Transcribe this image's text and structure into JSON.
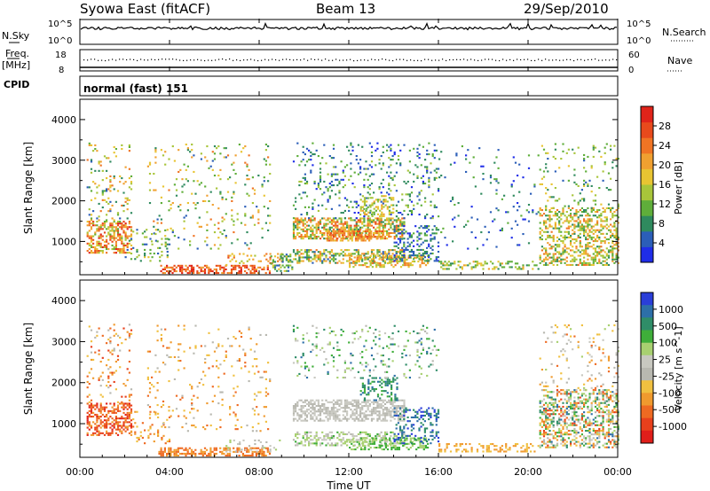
{
  "header": {
    "title": "Syowa East (fitACF)",
    "beam": "Beam 13",
    "date": "29/Sep/2010"
  },
  "panels": {
    "noise": {
      "left_label": "N.Sky",
      "left_ticks": [
        "10^5",
        "10^0"
      ],
      "right_label": "N.Search",
      "right_ticks": [
        "10^5",
        "10^0"
      ]
    },
    "freq": {
      "left_label_1": "Freq.",
      "left_label_2": "[MHz]",
      "left_ticks": [
        "18",
        "8"
      ],
      "right_label": "Nave",
      "right_ticks": [
        "60",
        "0"
      ]
    },
    "cpid": {
      "label": "CPID",
      "value": "normal (fast) 151"
    }
  },
  "time_axis": {
    "label": "Time UT",
    "ticks": [
      "00:00",
      "04:00",
      "08:00",
      "12:00",
      "16:00",
      "20:00",
      "00:00"
    ]
  },
  "chart_data": [
    {
      "type": "heatmap",
      "name": "power",
      "ylabel": "Slant Range [km]",
      "yticks": [
        1000,
        2000,
        3000,
        4000
      ],
      "ylim": [
        180,
        4500
      ],
      "xlim_hours": [
        0,
        24
      ],
      "colorbar": {
        "label": "Power [dB]",
        "ticks": [
          "4",
          "8",
          "12",
          "16",
          "20",
          "24",
          "28"
        ],
        "colors": [
          "#1f2de8",
          "#2b5eb8",
          "#2f8a5e",
          "#5fae3a",
          "#a8c53a",
          "#e8c432",
          "#f0a030",
          "#f07424",
          "#e84a1c",
          "#e0241a"
        ]
      },
      "regions": [
        {
          "t0": 0.3,
          "t1": 2.3,
          "r0": 700,
          "r1": 1500,
          "density": 0.5,
          "levels": [
            3,
            9
          ]
        },
        {
          "t0": 0.3,
          "t1": 2.3,
          "r0": 1500,
          "r1": 3400,
          "density": 0.1,
          "levels": [
            1,
            7
          ]
        },
        {
          "t0": 2.0,
          "t1": 4.0,
          "r0": 500,
          "r1": 1300,
          "density": 0.12,
          "levels": [
            1,
            5
          ]
        },
        {
          "t0": 3.5,
          "t1": 8.5,
          "r0": 200,
          "r1": 420,
          "density": 0.55,
          "levels": [
            6,
            9
          ]
        },
        {
          "t0": 3.0,
          "t1": 8.5,
          "r0": 800,
          "r1": 3400,
          "density": 0.06,
          "levels": [
            1,
            7
          ]
        },
        {
          "t0": 6.5,
          "t1": 9.0,
          "r0": 400,
          "r1": 700,
          "density": 0.18,
          "levels": [
            4,
            8
          ]
        },
        {
          "t0": 8.5,
          "t1": 9.5,
          "r0": 250,
          "r1": 700,
          "density": 0.4,
          "levels": [
            1,
            5
          ]
        },
        {
          "t0": 9.5,
          "t1": 14.5,
          "r0": 1050,
          "r1": 1550,
          "density": 0.6,
          "levels": [
            2,
            8
          ]
        },
        {
          "t0": 11.0,
          "t1": 13.5,
          "r0": 1000,
          "r1": 1250,
          "density": 0.6,
          "levels": [
            5,
            8
          ]
        },
        {
          "t0": 9.5,
          "t1": 14.5,
          "r0": 450,
          "r1": 800,
          "density": 0.5,
          "levels": [
            1,
            7
          ]
        },
        {
          "t0": 12.0,
          "t1": 15.5,
          "r0": 350,
          "r1": 650,
          "density": 0.45,
          "levels": [
            4,
            7
          ]
        },
        {
          "t0": 9.5,
          "t1": 16.0,
          "r0": 1550,
          "r1": 3400,
          "density": 0.12,
          "levels": [
            0,
            4
          ]
        },
        {
          "t0": 12.5,
          "t1": 14.0,
          "r0": 1600,
          "r1": 2100,
          "density": 0.35,
          "levels": [
            3,
            6
          ]
        },
        {
          "t0": 14.0,
          "t1": 16.0,
          "r0": 500,
          "r1": 1400,
          "density": 0.3,
          "levels": [
            0,
            3
          ]
        },
        {
          "t0": 16.0,
          "t1": 20.5,
          "r0": 300,
          "r1": 500,
          "density": 0.35,
          "levels": [
            2,
            6
          ]
        },
        {
          "t0": 16.0,
          "t1": 20.5,
          "r0": 800,
          "r1": 3400,
          "density": 0.04,
          "levels": [
            0,
            3
          ]
        },
        {
          "t0": 20.5,
          "t1": 24.0,
          "r0": 400,
          "r1": 1800,
          "density": 0.45,
          "levels": [
            2,
            7
          ]
        },
        {
          "t0": 20.5,
          "t1": 24.0,
          "r0": 1800,
          "r1": 3400,
          "density": 0.08,
          "levels": [
            1,
            5
          ]
        }
      ]
    },
    {
      "type": "heatmap",
      "name": "velocity",
      "ylabel": "Slant Range [km]",
      "yticks": [
        1000,
        2000,
        3000,
        4000
      ],
      "ylim": [
        180,
        4500
      ],
      "xlim_hours": [
        0,
        24
      ],
      "colorbar": {
        "label": "Velocity [m s^-1]",
        "ticks": [
          "1000",
          "500",
          "100",
          "25",
          "-25",
          "-100",
          "-500",
          "-1000"
        ],
        "colors": [
          "#2a3ed8",
          "#2d6fa8",
          "#2f8d68",
          "#3fae3a",
          "#a8d070",
          "#c8c8c0",
          "#b8b8b0",
          "#f0c040",
          "#f09a2e",
          "#ee6a22",
          "#e8401c",
          "#e01e1a"
        ]
      },
      "regions": [
        {
          "t0": 0.3,
          "t1": 2.3,
          "r0": 700,
          "r1": 1500,
          "density": 0.5,
          "levels": [
            8,
            11
          ]
        },
        {
          "t0": 0.3,
          "t1": 2.3,
          "r0": 1500,
          "r1": 3400,
          "density": 0.1,
          "levels": [
            6,
            10
          ]
        },
        {
          "t0": 2.0,
          "t1": 4.0,
          "r0": 500,
          "r1": 1300,
          "density": 0.1,
          "levels": [
            7,
            9
          ]
        },
        {
          "t0": 3.5,
          "t1": 8.5,
          "r0": 200,
          "r1": 420,
          "density": 0.55,
          "levels": [
            8,
            9
          ]
        },
        {
          "t0": 3.0,
          "t1": 8.5,
          "r0": 800,
          "r1": 3400,
          "density": 0.06,
          "levels": [
            6,
            9
          ]
        },
        {
          "t0": 6.5,
          "t1": 9.0,
          "r0": 300,
          "r1": 600,
          "density": 0.2,
          "levels": [
            4,
            6
          ]
        },
        {
          "t0": 9.5,
          "t1": 14.5,
          "r0": 1050,
          "r1": 1550,
          "density": 0.6,
          "levels": [
            5,
            6
          ]
        },
        {
          "t0": 9.5,
          "t1": 14.5,
          "r0": 450,
          "r1": 800,
          "density": 0.45,
          "levels": [
            3,
            6
          ]
        },
        {
          "t0": 12.0,
          "t1": 15.5,
          "r0": 350,
          "r1": 650,
          "density": 0.45,
          "levels": [
            3,
            4
          ]
        },
        {
          "t0": 12.5,
          "t1": 14.2,
          "r0": 1550,
          "r1": 2100,
          "density": 0.35,
          "levels": [
            1,
            3
          ]
        },
        {
          "t0": 9.5,
          "t1": 16.0,
          "r0": 2100,
          "r1": 3400,
          "density": 0.1,
          "levels": [
            1,
            6
          ]
        },
        {
          "t0": 14.0,
          "t1": 16.0,
          "r0": 500,
          "r1": 1400,
          "density": 0.3,
          "levels": [
            0,
            2
          ]
        },
        {
          "t0": 16.0,
          "t1": 20.5,
          "r0": 300,
          "r1": 500,
          "density": 0.35,
          "levels": [
            7,
            8
          ]
        },
        {
          "t0": 20.5,
          "t1": 24.0,
          "r0": 400,
          "r1": 1800,
          "density": 0.45,
          "levels": [
            1,
            10
          ]
        },
        {
          "t0": 20.5,
          "t1": 24.0,
          "r0": 1800,
          "r1": 3400,
          "density": 0.08,
          "levels": [
            4,
            9
          ]
        }
      ]
    }
  ]
}
